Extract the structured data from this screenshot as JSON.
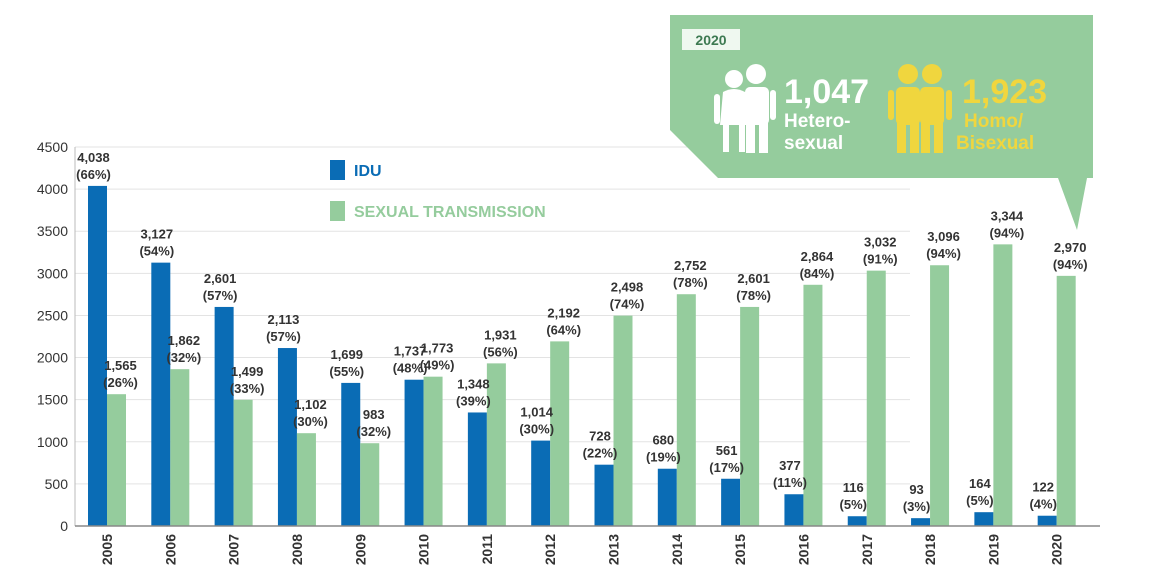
{
  "colors": {
    "idu": "#0a6cb5",
    "sexual": "#95cc9d",
    "callout_bg": "#95cc9d",
    "hetero_figure": "#ffffff",
    "homo_figure": "#f0d63e"
  },
  "legend": {
    "idu_label": "IDU",
    "sexual_label": "SEXUAL TRANSMISSION"
  },
  "callout": {
    "year": "2020",
    "hetero_value": "1,047",
    "hetero_label_line1": "Hetero-",
    "hetero_label_line2": "sexual",
    "homo_value": "1,923",
    "homo_label_line1": "Homo/",
    "homo_label_line2": "Bisexual"
  },
  "chart_data": {
    "type": "bar",
    "ylim": [
      0,
      4500
    ],
    "yticks": [
      0,
      500,
      1000,
      1500,
      2000,
      2500,
      3000,
      3500,
      4000,
      4500
    ],
    "categories": [
      "2005",
      "2006",
      "2007",
      "2008",
      "2009",
      "2010",
      "2011",
      "2012",
      "2013",
      "2014",
      "2015",
      "2016",
      "2017",
      "2018",
      "2019",
      "2020"
    ],
    "series": [
      {
        "name": "IDU",
        "values": [
          4038,
          3127,
          2601,
          2113,
          1699,
          1737,
          1348,
          1014,
          728,
          680,
          561,
          377,
          116,
          93,
          164,
          122
        ],
        "labels": [
          "4,038",
          "3,127",
          "2,601",
          "2,113",
          "1,699",
          "1,737",
          "1,348",
          "1,014",
          "728",
          "680",
          "561",
          "377",
          "116",
          "93",
          "164",
          "122"
        ],
        "pcts": [
          "(66%)",
          "(54%)",
          "(57%)",
          "(57%)",
          "(55%)",
          "(48%)",
          "(39%)",
          "(30%)",
          "(22%)",
          "(19%)",
          "(17%)",
          "(11%)",
          "(5%)",
          "(3%)",
          "(5%)",
          "(4%)"
        ]
      },
      {
        "name": "SEXUAL TRANSMISSION",
        "values": [
          1565,
          1862,
          1499,
          1102,
          983,
          1773,
          1931,
          2192,
          2498,
          2752,
          2601,
          2864,
          3032,
          3096,
          3344,
          2970
        ],
        "labels": [
          "1,565",
          "1,862",
          "1,499",
          "1,102",
          "983",
          "1,773",
          "1,931",
          "2,192",
          "2,498",
          "2,752",
          "2,601",
          "2,864",
          "3,032",
          "3,096",
          "3,344",
          "2,970"
        ],
        "pcts": [
          "(26%)",
          "(32%)",
          "(33%)",
          "(30%)",
          "(32%)",
          "(49%)",
          "(56%)",
          "(64%)",
          "(74%)",
          "(78%)",
          "(78%)",
          "(84%)",
          "(91%)",
          "(94%)",
          "(94%)",
          "(94%)"
        ]
      }
    ]
  }
}
